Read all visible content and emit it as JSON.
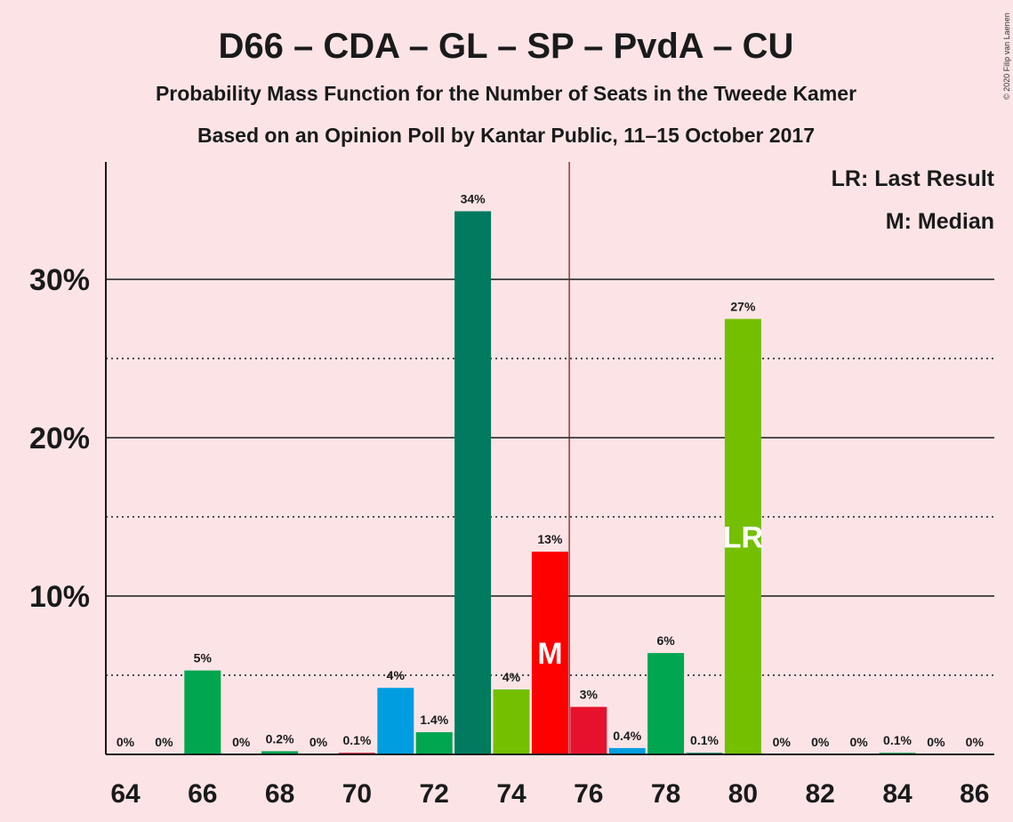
{
  "title": "D66 – CDA – GL – SP – PvdA – CU",
  "subtitle1": "Probability Mass Function for the Number of Seats in the Tweede Kamer",
  "subtitle2": "Based on an Opinion Poll by Kantar Public, 11–15 October 2017",
  "credit": "© 2020 Filip van Laenen",
  "legend": {
    "last_result": "LR: Last Result",
    "median": "M: Median"
  },
  "chart_data": {
    "type": "bar",
    "x": [
      64,
      65,
      66,
      67,
      68,
      69,
      70,
      71,
      72,
      73,
      74,
      75,
      76,
      77,
      78,
      79,
      80,
      81,
      82,
      83,
      84,
      85,
      86
    ],
    "values": [
      0,
      0,
      5.3,
      0,
      0.2,
      0,
      0.1,
      4.2,
      1.4,
      34.3,
      4.1,
      12.8,
      3.0,
      0.4,
      6.4,
      0.1,
      27.5,
      0,
      0,
      0,
      0.1,
      0,
      0
    ],
    "data_labels": [
      "0%",
      "0%",
      "5%",
      "0%",
      "0.2%",
      "0%",
      "0.1%",
      "4%",
      "1.4%",
      "34%",
      "4%",
      "13%",
      "3%",
      "0.4%",
      "6%",
      "0.1%",
      "27%",
      "0%",
      "0%",
      "0%",
      "0.1%",
      "0%",
      "0%"
    ],
    "bar_colors": [
      "#00a650",
      "#00a650",
      "#00a650",
      "#00a650",
      "#00a650",
      "#00a650",
      "#e8112d",
      "#009ee0",
      "#00a650",
      "#007b5f",
      "#73bf00",
      "#ff0000",
      "#e8112d",
      "#009ee0",
      "#00a650",
      "#007b5f",
      "#73bf00",
      "#00a650",
      "#00a650",
      "#00a650",
      "#00a650",
      "#00a650",
      "#00a650"
    ],
    "x_tick_labels": [
      "64",
      "66",
      "68",
      "70",
      "72",
      "74",
      "76",
      "78",
      "80",
      "82",
      "84",
      "86"
    ],
    "y_tick_labels": [
      "10%",
      "20%",
      "30%"
    ],
    "y_ticks": [
      10,
      20,
      30
    ],
    "y_minor_ticks": [
      5,
      15,
      25
    ],
    "ylim": [
      0,
      37
    ],
    "majority_line": 75.5,
    "majority_color": "#8b1a1a",
    "median_seat": 75,
    "median_marker": "M",
    "last_result_seat": 80,
    "last_result_marker": "LR",
    "legend_position": "top-right"
  }
}
